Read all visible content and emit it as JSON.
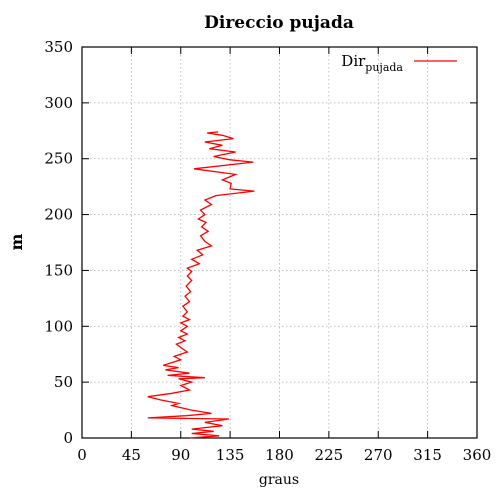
{
  "chart_data": {
    "type": "line",
    "title": "Direccio pujada",
    "xlabel": "graus",
    "ylabel": "m",
    "xlim": [
      0,
      360
    ],
    "ylim": [
      0,
      350
    ],
    "xticks": [
      0,
      45,
      90,
      135,
      180,
      225,
      270,
      315,
      360
    ],
    "yticks": [
      0,
      50,
      100,
      150,
      200,
      250,
      300,
      350
    ],
    "grid": true,
    "legend_position": "top-right",
    "series": [
      {
        "name": "Dir",
        "name_subscript": "pujada",
        "color": "#ff0000",
        "points": [
          [
            98,
            0
          ],
          [
            125,
            2
          ],
          [
            100,
            4
          ],
          [
            120,
            6
          ],
          [
            100,
            8
          ],
          [
            128,
            11
          ],
          [
            112,
            14
          ],
          [
            134,
            17
          ],
          [
            60,
            18
          ],
          [
            95,
            20
          ],
          [
            118,
            22
          ],
          [
            100,
            25
          ],
          [
            82,
            29
          ],
          [
            88,
            31
          ],
          [
            72,
            34
          ],
          [
            60,
            37
          ],
          [
            82,
            40
          ],
          [
            98,
            43
          ],
          [
            90,
            47
          ],
          [
            100,
            50
          ],
          [
            88,
            53
          ],
          [
            112,
            54
          ],
          [
            78,
            56
          ],
          [
            98,
            58
          ],
          [
            76,
            61
          ],
          [
            88,
            63
          ],
          [
            74,
            65
          ],
          [
            80,
            67
          ],
          [
            90,
            70
          ],
          [
            84,
            73
          ],
          [
            96,
            77
          ],
          [
            90,
            81
          ],
          [
            86,
            84
          ],
          [
            94,
            87
          ],
          [
            88,
            90
          ],
          [
            96,
            93
          ],
          [
            90,
            96
          ],
          [
            96,
            100
          ],
          [
            90,
            103
          ],
          [
            98,
            106
          ],
          [
            92,
            109
          ],
          [
            96,
            113
          ],
          [
            92,
            118
          ],
          [
            98,
            122
          ],
          [
            94,
            127
          ],
          [
            99,
            131
          ],
          [
            95,
            136
          ],
          [
            100,
            141
          ],
          [
            96,
            145
          ],
          [
            100,
            149
          ],
          [
            96,
            152
          ],
          [
            107,
            156
          ],
          [
            100,
            160
          ],
          [
            110,
            164
          ],
          [
            105,
            168
          ],
          [
            118,
            172
          ],
          [
            112,
            176
          ],
          [
            108,
            181
          ],
          [
            115,
            185
          ],
          [
            109,
            189
          ],
          [
            113,
            193
          ],
          [
            106,
            196
          ],
          [
            112,
            200
          ],
          [
            108,
            204
          ],
          [
            118,
            209
          ],
          [
            112,
            213
          ],
          [
            122,
            217
          ],
          [
            157,
            221
          ],
          [
            135,
            223
          ],
          [
            136,
            228
          ],
          [
            128,
            231
          ],
          [
            140,
            236
          ],
          [
            102,
            241
          ],
          [
            156,
            247
          ],
          [
            135,
            249
          ],
          [
            120,
            252
          ],
          [
            140,
            256
          ],
          [
            116,
            259
          ],
          [
            128,
            262
          ],
          [
            112,
            265
          ],
          [
            138,
            268
          ],
          [
            128,
            271
          ],
          [
            114,
            273
          ],
          [
            124,
            274
          ]
        ]
      }
    ]
  }
}
